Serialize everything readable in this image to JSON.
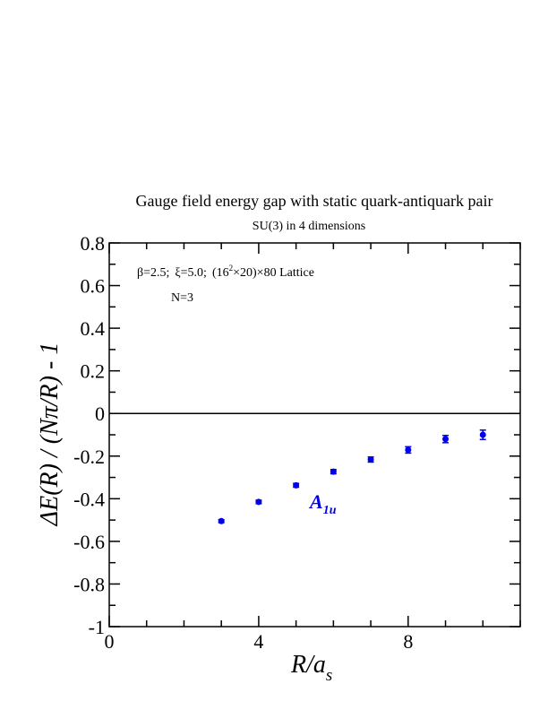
{
  "chart_data": {
    "type": "scatter",
    "title": "Gauge field energy gap with static quark-antiquark pair",
    "subtitle": "SU(3) in 4 dimensions",
    "xlabel": {
      "main": "R/a",
      "sub": "s"
    },
    "ylabel": "ΔE(R) / (Nπ/R) - 1",
    "xlim": [
      0,
      11
    ],
    "ylim": [
      -1,
      0.8
    ],
    "x_ticks": [
      0,
      4,
      8
    ],
    "x_tick_labels": [
      "0",
      "4",
      "8"
    ],
    "y_ticks": [
      -1,
      -0.8,
      -0.6,
      -0.4,
      -0.2,
      0,
      0.2,
      0.4,
      0.6,
      0.8
    ],
    "y_tick_labels": [
      "-1",
      "-0.8",
      "-0.6",
      "-0.4",
      "-0.2",
      "0",
      "0.2",
      "0.4",
      "0.6",
      "0.8"
    ],
    "reference_line_y": 0,
    "annotations": {
      "lattice": {
        "beta": "β=2.5;",
        "xi": "ξ=5.0;",
        "dims": "(16",
        "exp": "2",
        "rest": "×20)×80 Lattice"
      },
      "n": "N=3"
    },
    "series": [
      {
        "name": "A",
        "name_sub": "1u",
        "color": "#0000ee",
        "points": [
          {
            "x": 3,
            "y": -0.505,
            "err": 0.007
          },
          {
            "x": 4,
            "y": -0.415,
            "err": 0.008
          },
          {
            "x": 5,
            "y": -0.337,
            "err": 0.009
          },
          {
            "x": 6,
            "y": -0.273,
            "err": 0.01
          },
          {
            "x": 7,
            "y": -0.216,
            "err": 0.012
          },
          {
            "x": 8,
            "y": -0.171,
            "err": 0.015
          },
          {
            "x": 9,
            "y": -0.12,
            "err": 0.017
          },
          {
            "x": 10,
            "y": -0.1,
            "err": 0.022
          }
        ]
      }
    ]
  }
}
